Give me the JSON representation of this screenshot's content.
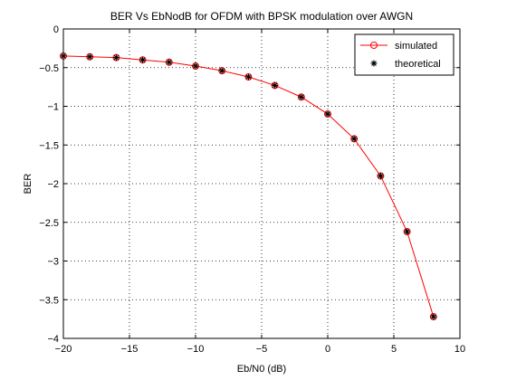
{
  "chart_data": {
    "type": "line",
    "title": "BER Vs EbNodB for OFDM with BPSK modulation over AWGN",
    "xlabel": "Eb/N0 (dB)",
    "ylabel": "BER",
    "xlim": [
      -20,
      10
    ],
    "ylim": [
      -4,
      0
    ],
    "x_ticks": [
      -20,
      -15,
      -10,
      -5,
      0,
      5,
      10
    ],
    "y_ticks": [
      0,
      -0.5,
      -1,
      -1.5,
      -2,
      -2.5,
      -3,
      -3.5,
      -4
    ],
    "x_tick_labels": [
      "−20",
      "−15",
      "−10",
      "−5",
      "0",
      "5",
      "10"
    ],
    "y_tick_labels": [
      "0",
      "−0.5",
      "−1",
      "−1.5",
      "−2",
      "−2.5",
      "−3",
      "−3.5",
      "−4"
    ],
    "grid": true,
    "grid_style": "dotted",
    "legend_position": "top-right",
    "x": [
      -20,
      -18,
      -16,
      -14,
      -12,
      -10,
      -8,
      -6,
      -4,
      -2,
      0,
      2,
      4,
      6,
      8
    ],
    "series": [
      {
        "name": "simulated",
        "color": "#ff0000",
        "line": "solid",
        "marker": "circle",
        "values": [
          -0.35,
          -0.36,
          -0.37,
          -0.4,
          -0.43,
          -0.48,
          -0.54,
          -0.62,
          -0.73,
          -0.88,
          -1.1,
          -1.42,
          -1.9,
          -2.62,
          -3.72
        ]
      },
      {
        "name": "theoretical",
        "color": "#000000",
        "line": "none",
        "marker": "asterisk",
        "values": [
          -0.35,
          -0.36,
          -0.37,
          -0.4,
          -0.43,
          -0.48,
          -0.54,
          -0.62,
          -0.73,
          -0.88,
          -1.1,
          -1.42,
          -1.9,
          -2.62,
          -3.72
        ]
      }
    ]
  }
}
